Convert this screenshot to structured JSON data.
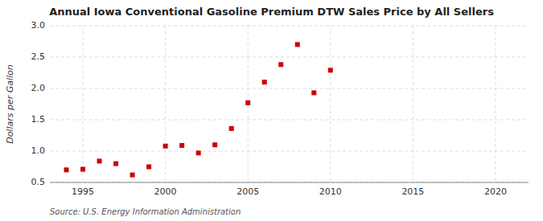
{
  "chart_data": {
    "type": "scatter",
    "title": "Annual Iowa Conventional Gasoline Premium DTW Sales Price by All Sellers",
    "y_label": "Dollars per Gallon",
    "source": "Source: U.S. Energy Information Administration",
    "x": [
      1994,
      1995,
      1996,
      1997,
      1998,
      1999,
      2000,
      2001,
      2002,
      2003,
      2004,
      2005,
      2006,
      2007,
      2008,
      2009,
      2010
    ],
    "values": [
      0.7,
      0.71,
      0.84,
      0.8,
      0.62,
      0.75,
      1.08,
      1.09,
      0.97,
      1.1,
      1.36,
      1.77,
      2.1,
      2.38,
      2.7,
      1.93,
      2.29
    ],
    "color": "#cc0000",
    "marker": "square",
    "grid": true,
    "xlim": [
      1993,
      2022
    ],
    "ylim": [
      0.5,
      3.0
    ],
    "xticks": [
      1995,
      2000,
      2005,
      2010,
      2015,
      2020
    ],
    "yticks": [
      0.5,
      {
        "value": 1.0,
        "label": "1.0"
      },
      1.5,
      {
        "value": 2.0,
        "label": "2.0"
      },
      2.5,
      {
        "value": 3.0,
        "label": "3.0"
      }
    ]
  }
}
